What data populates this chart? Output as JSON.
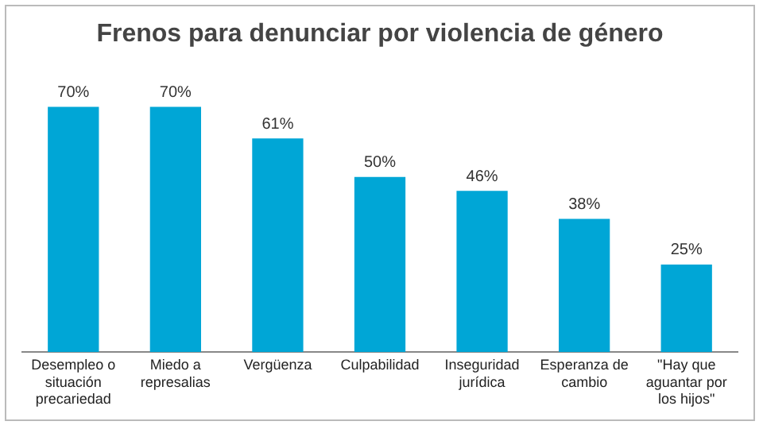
{
  "chart_data": {
    "type": "bar",
    "title": "Frenos para denunciar por violencia de género",
    "categories": [
      "Desempleo o situación precariedad",
      "Miedo a represalias",
      "Vergüenza",
      "Culpabilidad",
      "Inseguridad jurídica",
      "Esperanza de cambio",
      "\"Hay que aguantar por los hijos\""
    ],
    "values": [
      70,
      70,
      61,
      50,
      46,
      38,
      25
    ],
    "value_labels": [
      "70%",
      "70%",
      "61%",
      "50%",
      "46%",
      "38%",
      "25%"
    ],
    "color": "#00a6d6",
    "grid": false,
    "legend": false
  }
}
